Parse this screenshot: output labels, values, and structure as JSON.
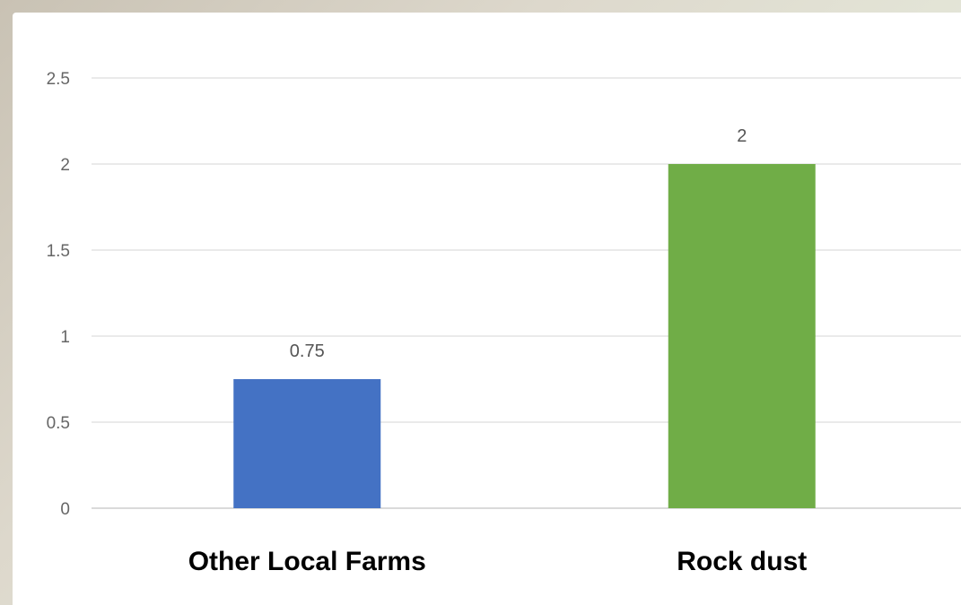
{
  "chart_data": {
    "type": "bar",
    "categories": [
      "Other Local Farms",
      "Rock dust"
    ],
    "values": [
      0.75,
      2
    ],
    "data_labels": [
      "0.75",
      "2"
    ],
    "y_ticks": [
      "0",
      "0.5",
      "1",
      "1.5",
      "2",
      "2.5"
    ],
    "ylim": [
      0,
      2.5
    ],
    "grid": true,
    "legend": "none",
    "colors": [
      "#4472c4",
      "#70ad47"
    ],
    "title": "",
    "xlabel": "",
    "ylabel": ""
  }
}
